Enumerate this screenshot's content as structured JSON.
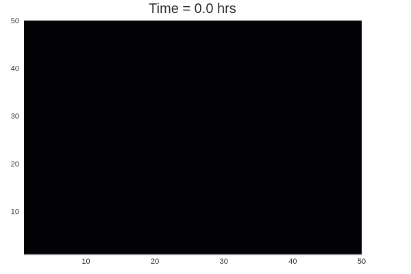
{
  "chart_data": {
    "type": "heatmap",
    "title": "Time = 0.0 hrs",
    "xlabel": "",
    "ylabel": "",
    "xlim": [
      1,
      50
    ],
    "ylim": [
      1,
      50
    ],
    "x_ticks": [
      10,
      20,
      30,
      40,
      50
    ],
    "y_ticks": [
      10,
      20,
      30,
      40,
      50
    ],
    "fill_color": "#030207",
    "grid": false,
    "legend": "none"
  }
}
